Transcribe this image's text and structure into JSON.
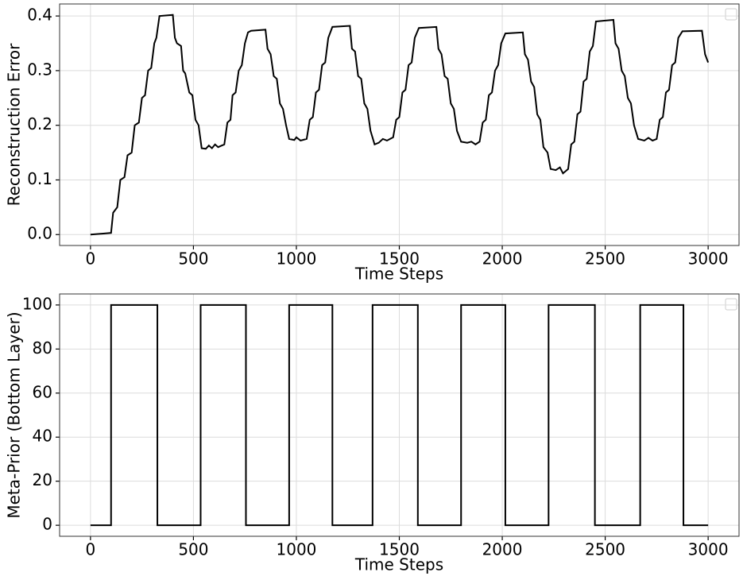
{
  "chart_data": [
    {
      "type": "line",
      "xlabel": "Time Steps",
      "ylabel": "Reconstruction Error",
      "color": "#000000",
      "grid": true,
      "xlim": [
        -150,
        3150
      ],
      "ylim": [
        -0.02,
        0.422
      ],
      "xticks": [
        0,
        500,
        1000,
        1500,
        2000,
        2500,
        3000
      ],
      "yticks": [
        {
          "value": 0,
          "label": "0.0"
        },
        0.1,
        0.2,
        0.3,
        0.4
      ],
      "x": [
        0,
        100,
        110,
        130,
        145,
        165,
        180,
        200,
        215,
        235,
        250,
        265,
        280,
        295,
        310,
        320,
        335,
        400,
        410,
        420,
        440,
        450,
        460,
        480,
        495,
        510,
        525,
        540,
        560,
        575,
        590,
        605,
        620,
        650,
        665,
        680,
        690,
        705,
        720,
        735,
        750,
        765,
        780,
        850,
        860,
        875,
        890,
        905,
        920,
        935,
        950,
        965,
        990,
        1000,
        1020,
        1050,
        1065,
        1080,
        1095,
        1110,
        1125,
        1140,
        1155,
        1175,
        1260,
        1270,
        1285,
        1300,
        1315,
        1330,
        1345,
        1360,
        1380,
        1400,
        1420,
        1440,
        1470,
        1485,
        1500,
        1515,
        1530,
        1545,
        1560,
        1575,
        1595,
        1680,
        1690,
        1705,
        1720,
        1735,
        1750,
        1765,
        1780,
        1800,
        1830,
        1850,
        1870,
        1890,
        1905,
        1920,
        1935,
        1950,
        1965,
        1980,
        1995,
        2015,
        2100,
        2110,
        2125,
        2140,
        2155,
        2170,
        2185,
        2200,
        2220,
        2235,
        2260,
        2280,
        2295,
        2320,
        2335,
        2350,
        2365,
        2380,
        2395,
        2410,
        2425,
        2440,
        2455,
        2540,
        2550,
        2565,
        2580,
        2595,
        2610,
        2625,
        2640,
        2660,
        2690,
        2710,
        2730,
        2750,
        2765,
        2780,
        2795,
        2810,
        2825,
        2840,
        2855,
        2875,
        2970,
        2985,
        3000
      ],
      "values": [
        0,
        0.003,
        0.04,
        0.05,
        0.1,
        0.105,
        0.145,
        0.15,
        0.2,
        0.205,
        0.25,
        0.255,
        0.3,
        0.305,
        0.35,
        0.36,
        0.4,
        0.402,
        0.36,
        0.35,
        0.345,
        0.3,
        0.295,
        0.26,
        0.255,
        0.21,
        0.2,
        0.158,
        0.157,
        0.163,
        0.158,
        0.165,
        0.16,
        0.165,
        0.205,
        0.21,
        0.255,
        0.26,
        0.3,
        0.31,
        0.35,
        0.37,
        0.373,
        0.375,
        0.34,
        0.33,
        0.29,
        0.285,
        0.24,
        0.23,
        0.2,
        0.175,
        0.173,
        0.178,
        0.172,
        0.175,
        0.21,
        0.215,
        0.26,
        0.265,
        0.31,
        0.315,
        0.36,
        0.38,
        0.382,
        0.34,
        0.335,
        0.29,
        0.285,
        0.24,
        0.23,
        0.19,
        0.165,
        0.168,
        0.175,
        0.172,
        0.178,
        0.21,
        0.215,
        0.26,
        0.265,
        0.31,
        0.315,
        0.36,
        0.378,
        0.38,
        0.34,
        0.33,
        0.29,
        0.285,
        0.24,
        0.23,
        0.19,
        0.17,
        0.168,
        0.17,
        0.165,
        0.17,
        0.205,
        0.21,
        0.255,
        0.26,
        0.3,
        0.31,
        0.35,
        0.368,
        0.37,
        0.33,
        0.32,
        0.28,
        0.27,
        0.22,
        0.21,
        0.16,
        0.15,
        0.12,
        0.118,
        0.123,
        0.112,
        0.12,
        0.165,
        0.17,
        0.22,
        0.225,
        0.28,
        0.285,
        0.335,
        0.345,
        0.39,
        0.393,
        0.35,
        0.34,
        0.3,
        0.29,
        0.25,
        0.24,
        0.2,
        0.175,
        0.172,
        0.177,
        0.172,
        0.175,
        0.21,
        0.215,
        0.26,
        0.265,
        0.31,
        0.315,
        0.36,
        0.372,
        0.373,
        0.33,
        0.315
      ]
    },
    {
      "type": "line",
      "xlabel": "Time Steps",
      "ylabel": "Meta-Prior (Bottom Layer)",
      "color": "#000000",
      "grid": true,
      "xlim": [
        -150,
        3150
      ],
      "ylim": [
        -5,
        105
      ],
      "xticks": [
        0,
        500,
        1000,
        1500,
        2000,
        2500,
        3000
      ],
      "yticks": [
        0,
        20,
        40,
        60,
        80,
        100
      ],
      "x": [
        0,
        100,
        100,
        325,
        325,
        535,
        535,
        755,
        755,
        965,
        965,
        1175,
        1175,
        1370,
        1370,
        1590,
        1590,
        1800,
        1800,
        2015,
        2015,
        2225,
        2225,
        2450,
        2450,
        2670,
        2670,
        2880,
        2880,
        3000
      ],
      "values": [
        0,
        0,
        100,
        100,
        0,
        0,
        100,
        100,
        0,
        0,
        100,
        100,
        0,
        0,
        100,
        100,
        0,
        0,
        100,
        100,
        0,
        0,
        100,
        100,
        0,
        0,
        100,
        100,
        0,
        0
      ]
    }
  ]
}
